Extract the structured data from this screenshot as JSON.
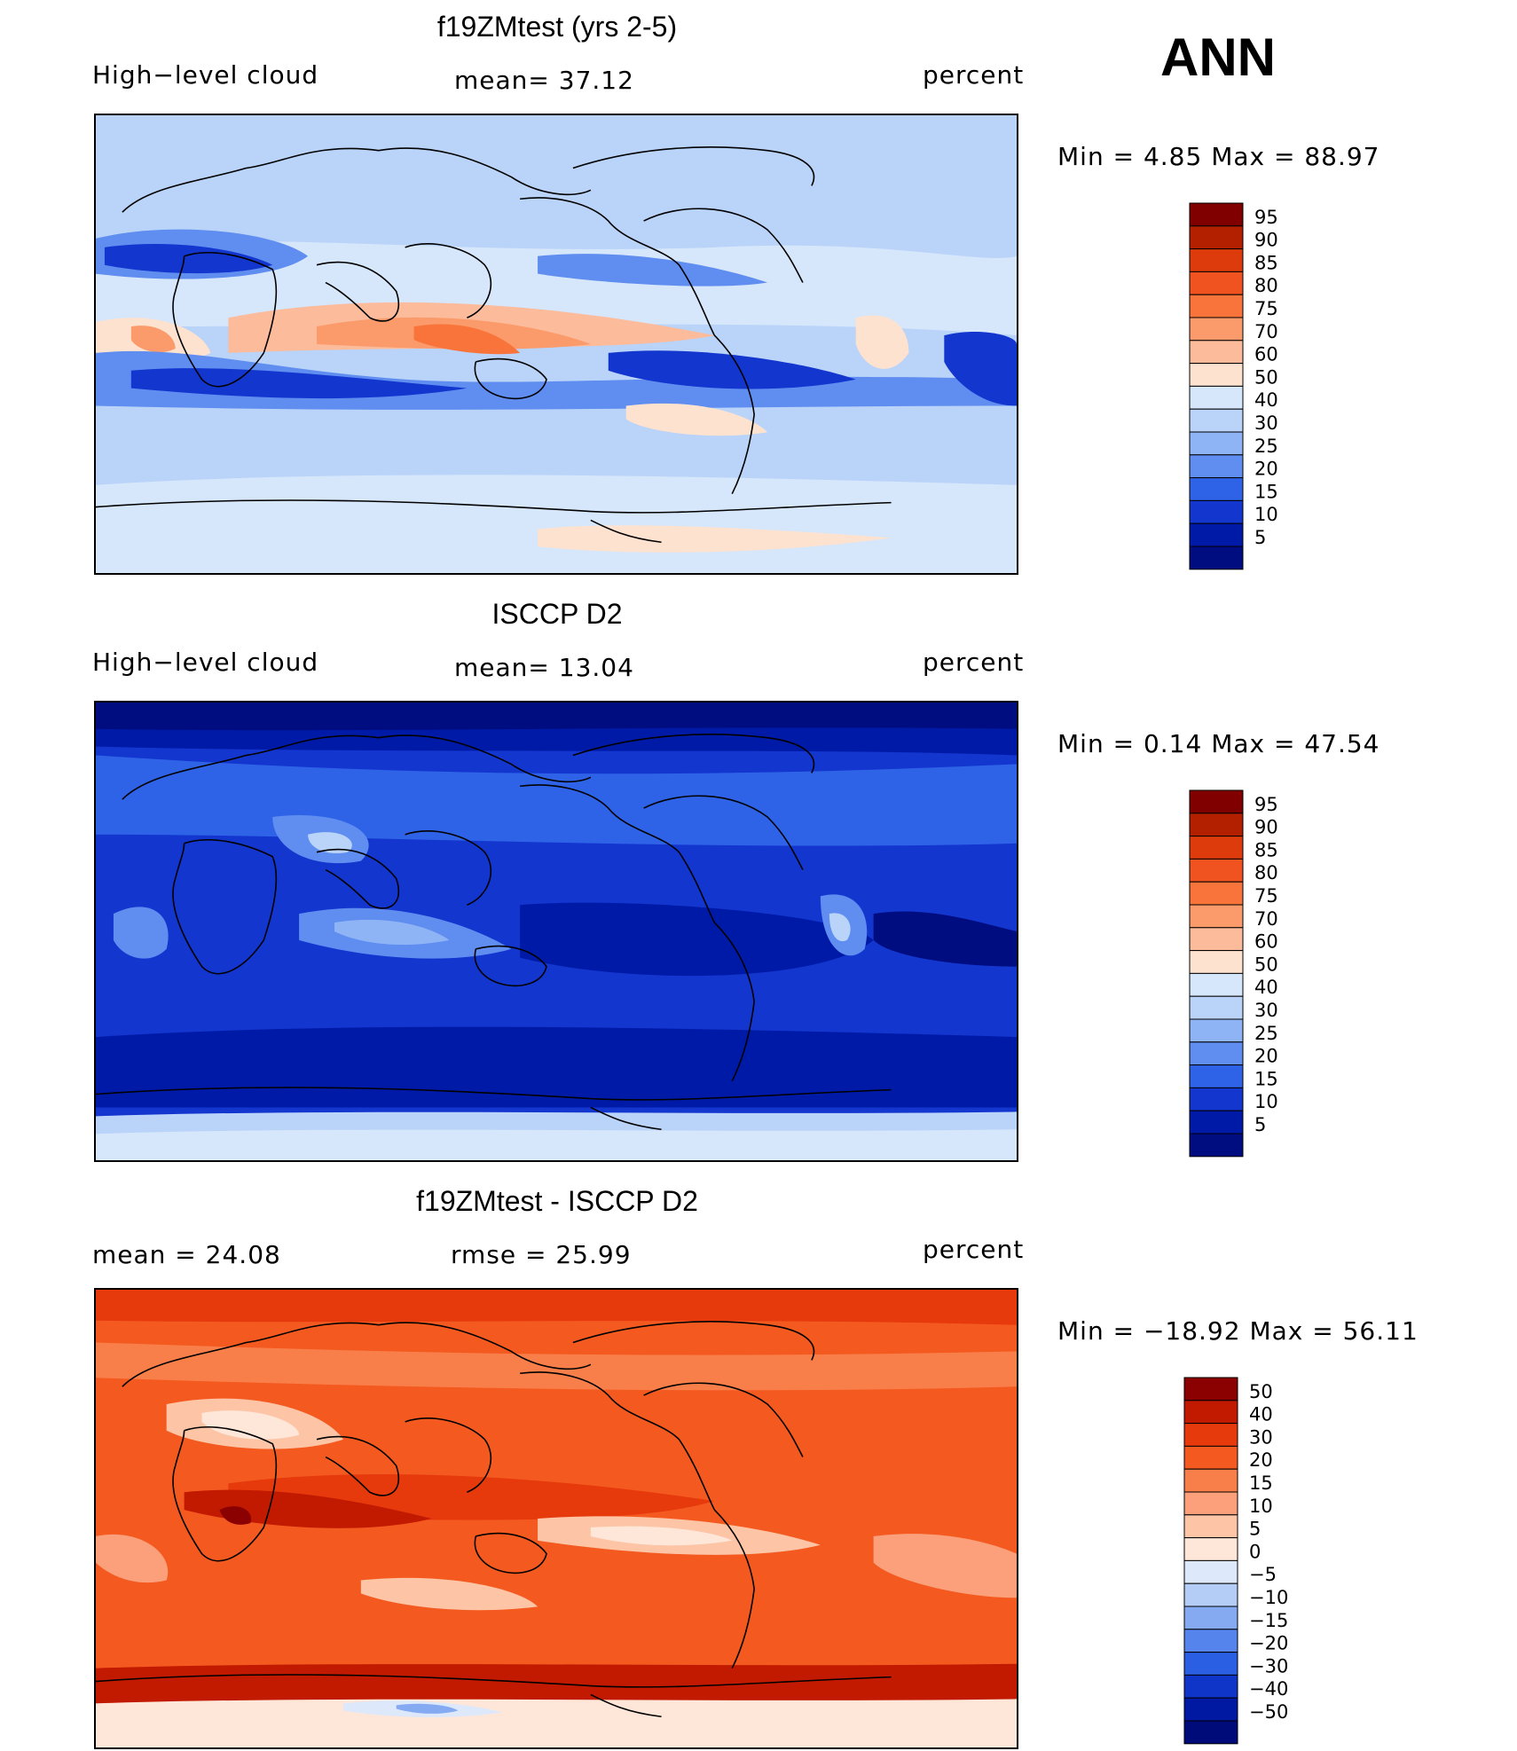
{
  "season": "ANN",
  "panels": [
    {
      "title": "f19ZMtest (yrs 2-5)",
      "left_label": "High−level cloud",
      "center_label": "mean=   37.12",
      "units": "percent",
      "minmax": "Min  =     4.85  Max  =    88.97",
      "colorbar": {
        "ticks": [
          "95",
          "90",
          "85",
          "80",
          "75",
          "70",
          "60",
          "50",
          "40",
          "30",
          "25",
          "20",
          "15",
          "10",
          "5"
        ],
        "colors": [
          "#800000",
          "#b22000",
          "#dd3b0b",
          "#f05220",
          "#f9743a",
          "#fb9a6a",
          "#fcbb9a",
          "#fde2cf",
          "#d6e6fb",
          "#b9d3f9",
          "#8fb4f5",
          "#5f8df0",
          "#2f63e7",
          "#1336cf",
          "#001aa8",
          "#000d80"
        ]
      },
      "map_field": "model"
    },
    {
      "title": "ISCCP D2",
      "left_label": "High−level cloud",
      "center_label": "mean=   13.04",
      "units": "percent",
      "minmax": "Min  =     0.14  Max  =    47.54",
      "colorbar": {
        "ticks": [
          "95",
          "90",
          "85",
          "80",
          "75",
          "70",
          "60",
          "50",
          "40",
          "30",
          "25",
          "20",
          "15",
          "10",
          "5"
        ],
        "colors": [
          "#800000",
          "#b22000",
          "#dd3b0b",
          "#f05220",
          "#f9743a",
          "#fb9a6a",
          "#fcbb9a",
          "#fde2cf",
          "#d6e6fb",
          "#b9d3f9",
          "#8fb4f5",
          "#5f8df0",
          "#2f63e7",
          "#1336cf",
          "#001aa8",
          "#000d80"
        ]
      },
      "map_field": "obs"
    },
    {
      "title": "f19ZMtest - ISCCP D2",
      "left_label": "mean  =    24.08",
      "center_label": "rmse  =    25.99",
      "units": "percent",
      "minmax": "Min  = −18.92  Max  =    56.11",
      "colorbar": {
        "ticks": [
          "50",
          "40",
          "30",
          "20",
          "15",
          "10",
          "5",
          "0",
          "−5",
          "−10",
          "−15",
          "−20",
          "−30",
          "−40",
          "−50"
        ],
        "colors": [
          "#8b0000",
          "#c21a00",
          "#e63a0d",
          "#f45a20",
          "#f97f4a",
          "#fba07a",
          "#fdc4a6",
          "#fee6d8",
          "#dde9fb",
          "#b4cdf7",
          "#86aaf2",
          "#5585ec",
          "#2a5ee3",
          "#0f35c8",
          "#0019a3",
          "#000b7a"
        ]
      },
      "map_field": "diff"
    }
  ],
  "chart_data": [
    {
      "type": "heatmap",
      "title": "f19ZMtest (yrs 2-5)",
      "field": "High−level cloud",
      "units": "percent",
      "mean": 37.12,
      "min": 4.85,
      "max": 88.97,
      "contour_levels": [
        5,
        10,
        15,
        20,
        25,
        30,
        40,
        50,
        60,
        70,
        75,
        80,
        85,
        90,
        95
      ],
      "x_range": [
        0,
        360
      ],
      "y_range": [
        -90,
        90
      ]
    },
    {
      "type": "heatmap",
      "title": "ISCCP D2",
      "field": "High−level cloud",
      "units": "percent",
      "mean": 13.04,
      "min": 0.14,
      "max": 47.54,
      "contour_levels": [
        5,
        10,
        15,
        20,
        25,
        30,
        40,
        50,
        60,
        70,
        75,
        80,
        85,
        90,
        95
      ],
      "x_range": [
        0,
        360
      ],
      "y_range": [
        -90,
        90
      ]
    },
    {
      "type": "heatmap",
      "title": "f19ZMtest - ISCCP D2",
      "units": "percent",
      "mean": 24.08,
      "rmse": 25.99,
      "min": -18.92,
      "max": 56.11,
      "contour_levels": [
        -50,
        -40,
        -30,
        -20,
        -15,
        -10,
        -5,
        0,
        5,
        10,
        15,
        20,
        30,
        40,
        50
      ],
      "x_range": [
        0,
        360
      ],
      "y_range": [
        -90,
        90
      ]
    }
  ]
}
